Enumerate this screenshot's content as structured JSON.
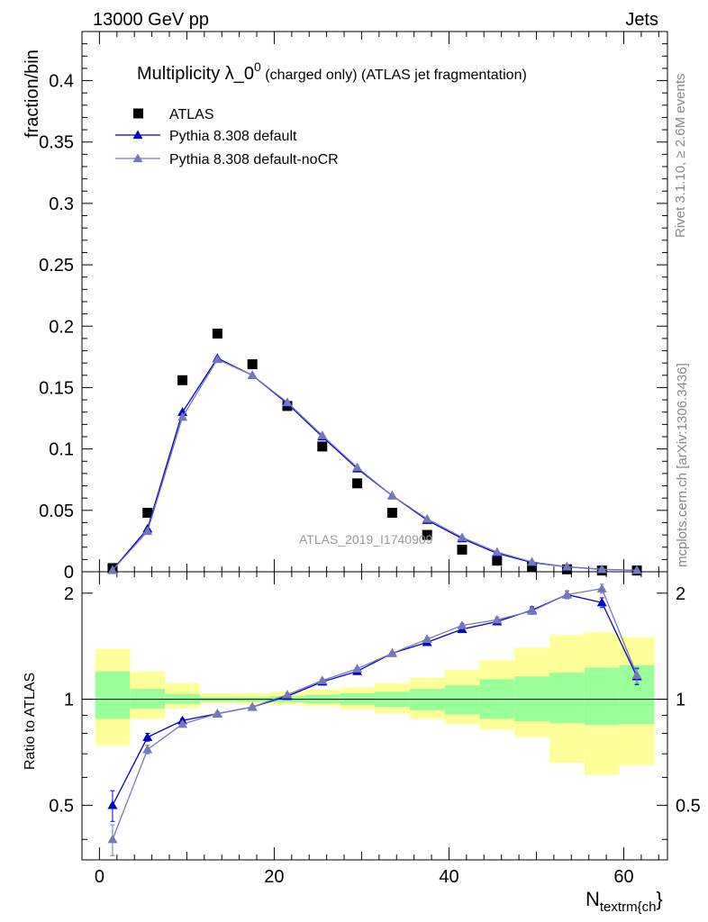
{
  "header": {
    "left": "13000 GeV pp",
    "right": "Jets"
  },
  "side_text": {
    "top": "Rivet 3.1.10, ≥ 2.6M events",
    "bottom": "mcplots.cern.ch [arXiv:1306.3436]"
  },
  "watermark": "ATLAS_2019_I1740909",
  "chart_data": [
    {
      "type": "scatter",
      "panel": "main",
      "title_main": "Multiplicity λ_0",
      "title_sup": "0",
      "title_rest": " (charged only) (ATLAS jet fragmentation)",
      "ylabel": "fraction/bin",
      "xlim": [
        -2,
        65
      ],
      "ylim": [
        0,
        0.44
      ],
      "yticks": [
        0,
        0.05,
        0.1,
        0.15,
        0.2,
        0.25,
        0.3,
        0.35,
        0.4
      ],
      "ytick_labels": [
        "0",
        "0.05",
        "0.1",
        "0.15",
        "0.2",
        "0.25",
        "0.3",
        "0.35",
        "0.4"
      ],
      "legend_position": "top-left",
      "series": [
        {
          "name": "ATLAS",
          "marker": "square",
          "color": "#000000",
          "x": [
            1.5,
            5.5,
            9.5,
            13.5,
            17.5,
            21.5,
            25.5,
            29.5,
            33.5,
            37.5,
            41.5,
            45.5,
            49.5,
            53.5,
            57.5,
            61.5
          ],
          "values": [
            0.003,
            0.048,
            0.156,
            0.194,
            0.169,
            0.135,
            0.102,
            0.072,
            0.048,
            0.03,
            0.018,
            0.009,
            0.004,
            0.002,
            0.001,
            0.001
          ]
        },
        {
          "name": "Pythia 8.308 default",
          "marker": "triangle",
          "color": "#0000cc",
          "x": [
            1.5,
            5.5,
            9.5,
            13.5,
            17.5,
            21.5,
            25.5,
            29.5,
            33.5,
            37.5,
            41.5,
            45.5,
            49.5,
            53.5,
            57.5,
            61.5
          ],
          "values": [
            0.0015,
            0.035,
            0.13,
            0.174,
            0.16,
            0.137,
            0.11,
            0.084,
            0.062,
            0.042,
            0.027,
            0.015,
            0.0075,
            0.004,
            0.0019,
            0.0012
          ]
        },
        {
          "name": "Pythia 8.308 default-noCR",
          "marker": "triangle",
          "color": "#7777bb",
          "x": [
            1.5,
            5.5,
            9.5,
            13.5,
            17.5,
            21.5,
            25.5,
            29.5,
            33.5,
            37.5,
            41.5,
            45.5,
            49.5,
            53.5,
            57.5,
            61.5
          ],
          "values": [
            0.0012,
            0.033,
            0.126,
            0.173,
            0.16,
            0.138,
            0.111,
            0.085,
            0.062,
            0.043,
            0.028,
            0.016,
            0.008,
            0.004,
            0.002,
            0.0012
          ]
        }
      ]
    },
    {
      "type": "line",
      "panel": "ratio",
      "ylabel": "Ratio to ATLAS",
      "xlabel_main": "N",
      "xlabel_sub": "textrm{ch",
      "xlabel_close": "}",
      "xlim": [
        -2,
        65
      ],
      "ylim": [
        0.35,
        2.3
      ],
      "xticks": [
        0,
        20,
        40,
        60
      ],
      "xtick_labels": [
        "0",
        "20",
        "40",
        "60"
      ],
      "yticks": [
        0.5,
        1,
        2
      ],
      "ytick_labels": [
        "0.5",
        "1",
        "2"
      ],
      "bands": {
        "edges": [
          -0.5,
          3.5,
          7.5,
          11.5,
          15.5,
          19.5,
          23.5,
          27.5,
          31.5,
          35.5,
          39.5,
          43.5,
          47.5,
          51.5,
          55.5,
          59.5,
          63.5
        ],
        "green_low": [
          0.88,
          0.94,
          0.97,
          0.985,
          0.985,
          0.98,
          0.975,
          0.965,
          0.95,
          0.93,
          0.905,
          0.88,
          0.865,
          0.855,
          0.845,
          0.85
        ],
        "green_high": [
          1.2,
          1.07,
          1.035,
          1.015,
          1.015,
          1.02,
          1.03,
          1.04,
          1.05,
          1.07,
          1.095,
          1.14,
          1.16,
          1.19,
          1.23,
          1.25
        ],
        "yellow_low": [
          0.74,
          0.88,
          0.94,
          0.975,
          0.97,
          0.965,
          0.955,
          0.935,
          0.91,
          0.88,
          0.85,
          0.82,
          0.78,
          0.66,
          0.61,
          0.65
        ],
        "yellow_high": [
          1.39,
          1.2,
          1.11,
          1.04,
          1.04,
          1.05,
          1.065,
          1.08,
          1.11,
          1.15,
          1.21,
          1.29,
          1.4,
          1.52,
          1.55,
          1.5
        ]
      },
      "series": [
        {
          "name": "Pythia 8.308 default",
          "color": "#0000cc",
          "x": [
            1.5,
            5.5,
            9.5,
            13.5,
            17.5,
            21.5,
            25.5,
            29.5,
            33.5,
            37.5,
            41.5,
            45.5,
            49.5,
            53.5,
            57.5,
            61.5
          ],
          "values": [
            0.5,
            0.78,
            0.87,
            0.91,
            0.95,
            1.02,
            1.12,
            1.2,
            1.35,
            1.45,
            1.58,
            1.66,
            1.79,
            1.98,
            1.88,
            1.16
          ],
          "errors": [
            0.05,
            0.02,
            0.01,
            0.01,
            0.01,
            0.01,
            0.01,
            0.01,
            0.01,
            0.02,
            0.02,
            0.03,
            0.04,
            0.05,
            0.06,
            0.06
          ]
        },
        {
          "name": "Pythia 8.308 default-noCR",
          "color": "#7777bb",
          "x": [
            1.5,
            5.5,
            9.5,
            13.5,
            17.5,
            21.5,
            25.5,
            29.5,
            33.5,
            37.5,
            41.5,
            45.5,
            49.5,
            53.5,
            57.5,
            61.5
          ],
          "values": [
            0.4,
            0.72,
            0.85,
            0.91,
            0.95,
            1.03,
            1.13,
            1.22,
            1.35,
            1.48,
            1.62,
            1.68,
            1.78,
            1.98,
            2.06,
            1.17
          ],
          "errors": [
            0.04,
            0.02,
            0.01,
            0.01,
            0.01,
            0.01,
            0.01,
            0.01,
            0.01,
            0.02,
            0.02,
            0.03,
            0.04,
            0.05,
            0.06,
            0.06
          ]
        }
      ]
    }
  ]
}
